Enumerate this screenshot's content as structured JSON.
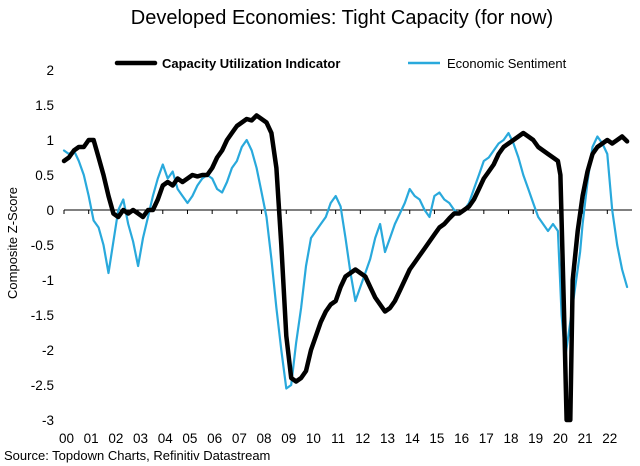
{
  "chart_data": {
    "type": "line",
    "title": "Developed Economies: Tight Capacity (for now)",
    "ylabel": "Composite Z-Score",
    "xlabel": "",
    "source": "Source: Topdown Charts, Refinitiv Datastream",
    "ylim": [
      -3,
      2
    ],
    "xlim": [
      2000.0,
      2023.0
    ],
    "yticks": [
      2,
      1.5,
      1,
      0.5,
      0,
      -0.5,
      -1,
      -1.5,
      -2,
      -2.5,
      -3
    ],
    "xtick_labels": [
      "00",
      "01",
      "02",
      "03",
      "04",
      "05",
      "06",
      "07",
      "08",
      "09",
      "10",
      "11",
      "12",
      "13",
      "14",
      "15",
      "16",
      "17",
      "18",
      "19",
      "20",
      "21",
      "22"
    ],
    "legend_position": "top",
    "series": [
      {
        "name": "Capacity Utilization Indicator",
        "color": "#000000",
        "points": [
          [
            2000.0,
            0.7
          ],
          [
            2000.2,
            0.75
          ],
          [
            2000.4,
            0.85
          ],
          [
            2000.6,
            0.9
          ],
          [
            2000.8,
            0.9
          ],
          [
            2001.0,
            1.0
          ],
          [
            2001.2,
            1.0
          ],
          [
            2001.4,
            0.75
          ],
          [
            2001.6,
            0.5
          ],
          [
            2001.8,
            0.2
          ],
          [
            2002.0,
            -0.05
          ],
          [
            2002.2,
            -0.1
          ],
          [
            2002.4,
            0.0
          ],
          [
            2002.6,
            -0.05
          ],
          [
            2002.8,
            0.0
          ],
          [
            2003.0,
            -0.05
          ],
          [
            2003.2,
            -0.1
          ],
          [
            2003.4,
            0.0
          ],
          [
            2003.6,
            0.0
          ],
          [
            2003.8,
            0.15
          ],
          [
            2004.0,
            0.35
          ],
          [
            2004.2,
            0.4
          ],
          [
            2004.4,
            0.35
          ],
          [
            2004.6,
            0.45
          ],
          [
            2004.8,
            0.4
          ],
          [
            2005.0,
            0.45
          ],
          [
            2005.2,
            0.5
          ],
          [
            2005.4,
            0.48
          ],
          [
            2005.6,
            0.5
          ],
          [
            2005.8,
            0.5
          ],
          [
            2006.0,
            0.6
          ],
          [
            2006.2,
            0.75
          ],
          [
            2006.4,
            0.85
          ],
          [
            2006.6,
            1.0
          ],
          [
            2006.8,
            1.1
          ],
          [
            2007.0,
            1.2
          ],
          [
            2007.2,
            1.25
          ],
          [
            2007.4,
            1.3
          ],
          [
            2007.6,
            1.28
          ],
          [
            2007.8,
            1.35
          ],
          [
            2008.0,
            1.3
          ],
          [
            2008.2,
            1.25
          ],
          [
            2008.4,
            1.1
          ],
          [
            2008.6,
            0.6
          ],
          [
            2008.8,
            -0.5
          ],
          [
            2009.0,
            -1.8
          ],
          [
            2009.2,
            -2.4
          ],
          [
            2009.4,
            -2.45
          ],
          [
            2009.6,
            -2.4
          ],
          [
            2009.8,
            -2.3
          ],
          [
            2010.0,
            -2.0
          ],
          [
            2010.2,
            -1.8
          ],
          [
            2010.4,
            -1.6
          ],
          [
            2010.6,
            -1.45
          ],
          [
            2010.8,
            -1.35
          ],
          [
            2011.0,
            -1.3
          ],
          [
            2011.2,
            -1.1
          ],
          [
            2011.4,
            -0.95
          ],
          [
            2011.6,
            -0.9
          ],
          [
            2011.8,
            -0.85
          ],
          [
            2012.0,
            -0.9
          ],
          [
            2012.2,
            -0.95
          ],
          [
            2012.4,
            -1.1
          ],
          [
            2012.6,
            -1.25
          ],
          [
            2012.8,
            -1.35
          ],
          [
            2013.0,
            -1.45
          ],
          [
            2013.2,
            -1.4
          ],
          [
            2013.4,
            -1.3
          ],
          [
            2013.6,
            -1.15
          ],
          [
            2013.8,
            -1.0
          ],
          [
            2014.0,
            -0.85
          ],
          [
            2014.2,
            -0.75
          ],
          [
            2014.4,
            -0.65
          ],
          [
            2014.6,
            -0.55
          ],
          [
            2014.8,
            -0.45
          ],
          [
            2015.0,
            -0.35
          ],
          [
            2015.2,
            -0.25
          ],
          [
            2015.4,
            -0.2
          ],
          [
            2015.6,
            -0.12
          ],
          [
            2015.8,
            -0.05
          ],
          [
            2016.0,
            -0.05
          ],
          [
            2016.2,
            0.0
          ],
          [
            2016.4,
            0.05
          ],
          [
            2016.6,
            0.15
          ],
          [
            2016.8,
            0.3
          ],
          [
            2017.0,
            0.45
          ],
          [
            2017.2,
            0.55
          ],
          [
            2017.4,
            0.65
          ],
          [
            2017.6,
            0.8
          ],
          [
            2017.8,
            0.9
          ],
          [
            2018.0,
            0.95
          ],
          [
            2018.2,
            1.0
          ],
          [
            2018.4,
            1.05
          ],
          [
            2018.6,
            1.1
          ],
          [
            2018.8,
            1.05
          ],
          [
            2019.0,
            1.0
          ],
          [
            2019.2,
            0.9
          ],
          [
            2019.4,
            0.85
          ],
          [
            2019.6,
            0.8
          ],
          [
            2019.8,
            0.75
          ],
          [
            2020.0,
            0.7
          ],
          [
            2020.1,
            0.5
          ],
          [
            2020.25,
            -1.5
          ],
          [
            2020.35,
            -3.0
          ],
          [
            2020.5,
            -3.0
          ],
          [
            2020.6,
            -1.0
          ],
          [
            2020.8,
            -0.3
          ],
          [
            2021.0,
            0.2
          ],
          [
            2021.2,
            0.55
          ],
          [
            2021.4,
            0.8
          ],
          [
            2021.6,
            0.9
          ],
          [
            2021.8,
            0.95
          ],
          [
            2022.0,
            1.0
          ],
          [
            2022.2,
            0.95
          ],
          [
            2022.4,
            1.0
          ],
          [
            2022.6,
            1.05
          ],
          [
            2022.8,
            0.98
          ]
        ]
      },
      {
        "name": "Economic Sentiment",
        "color": "#29A9DC",
        "points": [
          [
            2000.0,
            0.85
          ],
          [
            2000.2,
            0.8
          ],
          [
            2000.4,
            0.85
          ],
          [
            2000.6,
            0.7
          ],
          [
            2000.8,
            0.5
          ],
          [
            2001.0,
            0.2
          ],
          [
            2001.2,
            -0.15
          ],
          [
            2001.4,
            -0.25
          ],
          [
            2001.6,
            -0.5
          ],
          [
            2001.8,
            -0.9
          ],
          [
            2002.0,
            -0.45
          ],
          [
            2002.2,
            0.0
          ],
          [
            2002.4,
            0.15
          ],
          [
            2002.6,
            -0.2
          ],
          [
            2002.8,
            -0.45
          ],
          [
            2003.0,
            -0.8
          ],
          [
            2003.2,
            -0.4
          ],
          [
            2003.4,
            -0.1
          ],
          [
            2003.6,
            0.2
          ],
          [
            2003.8,
            0.45
          ],
          [
            2004.0,
            0.65
          ],
          [
            2004.2,
            0.45
          ],
          [
            2004.4,
            0.55
          ],
          [
            2004.6,
            0.3
          ],
          [
            2004.8,
            0.2
          ],
          [
            2005.0,
            0.1
          ],
          [
            2005.2,
            0.2
          ],
          [
            2005.4,
            0.35
          ],
          [
            2005.6,
            0.45
          ],
          [
            2005.8,
            0.5
          ],
          [
            2006.0,
            0.45
          ],
          [
            2006.2,
            0.3
          ],
          [
            2006.4,
            0.25
          ],
          [
            2006.6,
            0.4
          ],
          [
            2006.8,
            0.6
          ],
          [
            2007.0,
            0.7
          ],
          [
            2007.2,
            0.9
          ],
          [
            2007.4,
            1.0
          ],
          [
            2007.6,
            0.85
          ],
          [
            2007.8,
            0.6
          ],
          [
            2008.0,
            0.25
          ],
          [
            2008.2,
            -0.1
          ],
          [
            2008.4,
            -0.7
          ],
          [
            2008.6,
            -1.4
          ],
          [
            2008.8,
            -2.0
          ],
          [
            2009.0,
            -2.55
          ],
          [
            2009.2,
            -2.5
          ],
          [
            2009.4,
            -1.9
          ],
          [
            2009.6,
            -1.4
          ],
          [
            2009.8,
            -0.8
          ],
          [
            2010.0,
            -0.4
          ],
          [
            2010.2,
            -0.3
          ],
          [
            2010.4,
            -0.2
          ],
          [
            2010.6,
            -0.1
          ],
          [
            2010.8,
            0.1
          ],
          [
            2011.0,
            0.2
          ],
          [
            2011.2,
            0.05
          ],
          [
            2011.4,
            -0.4
          ],
          [
            2011.6,
            -0.9
          ],
          [
            2011.8,
            -1.3
          ],
          [
            2012.0,
            -1.1
          ],
          [
            2012.2,
            -0.9
          ],
          [
            2012.4,
            -0.7
          ],
          [
            2012.6,
            -0.4
          ],
          [
            2012.8,
            -0.2
          ],
          [
            2013.0,
            -0.6
          ],
          [
            2013.2,
            -0.4
          ],
          [
            2013.4,
            -0.2
          ],
          [
            2013.6,
            -0.05
          ],
          [
            2013.8,
            0.1
          ],
          [
            2014.0,
            0.3
          ],
          [
            2014.2,
            0.2
          ],
          [
            2014.4,
            0.15
          ],
          [
            2014.6,
            0.0
          ],
          [
            2014.8,
            -0.1
          ],
          [
            2015.0,
            0.2
          ],
          [
            2015.2,
            0.25
          ],
          [
            2015.4,
            0.15
          ],
          [
            2015.6,
            0.1
          ],
          [
            2015.8,
            0.0
          ],
          [
            2016.0,
            -0.05
          ],
          [
            2016.2,
            0.0
          ],
          [
            2016.4,
            0.1
          ],
          [
            2016.6,
            0.3
          ],
          [
            2016.8,
            0.5
          ],
          [
            2017.0,
            0.7
          ],
          [
            2017.2,
            0.75
          ],
          [
            2017.4,
            0.85
          ],
          [
            2017.6,
            0.95
          ],
          [
            2017.8,
            1.0
          ],
          [
            2018.0,
            1.1
          ],
          [
            2018.2,
            0.95
          ],
          [
            2018.4,
            0.75
          ],
          [
            2018.6,
            0.5
          ],
          [
            2018.8,
            0.3
          ],
          [
            2019.0,
            0.1
          ],
          [
            2019.2,
            -0.1
          ],
          [
            2019.4,
            -0.2
          ],
          [
            2019.6,
            -0.3
          ],
          [
            2019.8,
            -0.2
          ],
          [
            2020.0,
            -0.3
          ],
          [
            2020.15,
            -1.5
          ],
          [
            2020.3,
            -2.1
          ],
          [
            2020.5,
            -1.6
          ],
          [
            2020.7,
            -1.1
          ],
          [
            2020.9,
            -0.6
          ],
          [
            2021.0,
            -0.2
          ],
          [
            2021.2,
            0.4
          ],
          [
            2021.4,
            0.9
          ],
          [
            2021.6,
            1.05
          ],
          [
            2021.8,
            0.95
          ],
          [
            2022.0,
            0.8
          ],
          [
            2022.2,
            0.0
          ],
          [
            2022.4,
            -0.5
          ],
          [
            2022.6,
            -0.85
          ],
          [
            2022.8,
            -1.1
          ]
        ]
      }
    ]
  }
}
